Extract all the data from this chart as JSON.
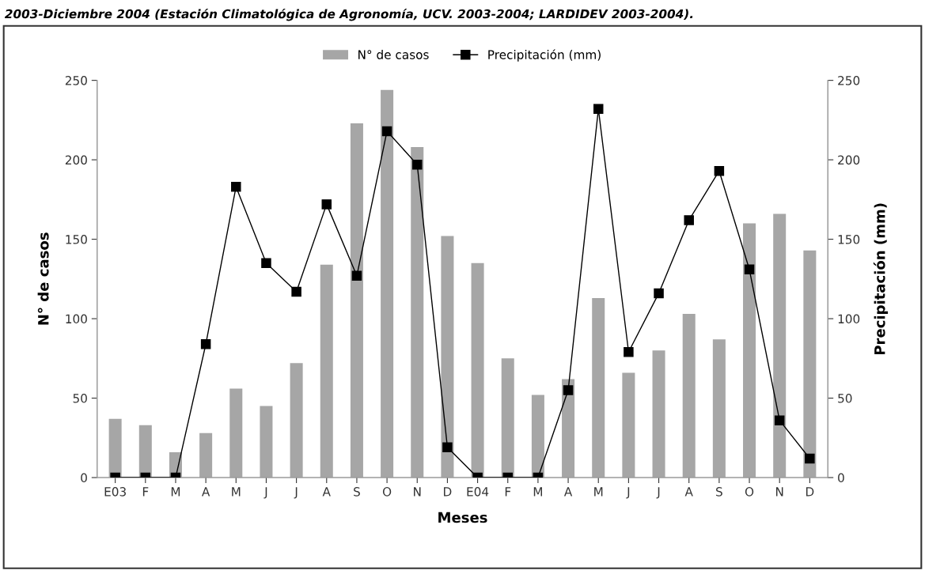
{
  "chart_data": {
    "type": "bar",
    "annotations": [
      "2003-Diciembre 2004 (Estación Climatológica de Agronomía, UCV. 2003-2004; LARDIDEV 2003-2004)."
    ],
    "xlabel": "Meses",
    "ylabel": "N° de casos",
    "y2label": "Precipitación (mm)",
    "categories": [
      "E03",
      "F",
      "M",
      "A",
      "M",
      "J",
      "J",
      "A",
      "S",
      "O",
      "N",
      "D",
      "E04",
      "F",
      "M",
      "A",
      "M",
      "J",
      "J",
      "A",
      "S",
      "O",
      "N",
      "D"
    ],
    "series": [
      {
        "name": "N° de casos",
        "color": "#a6a6a6",
        "values": [
          37,
          33,
          16,
          28,
          56,
          45,
          72,
          134,
          223,
          244,
          208,
          152,
          135,
          75,
          52,
          62,
          113,
          66,
          80,
          103,
          87,
          160,
          166,
          143
        ]
      },
      {
        "name": "Precipitación (mm)",
        "type": "line",
        "axis": "y2",
        "color": "#000000",
        "marker": "square",
        "values": [
          0,
          0,
          0,
          84,
          183,
          135,
          117,
          172,
          127,
          218,
          197,
          19,
          0,
          0,
          0,
          55,
          232,
          79,
          116,
          162,
          193,
          131,
          36,
          12
        ]
      }
    ],
    "ylim": [
      0,
      250
    ],
    "yticks": [
      0,
      50,
      100,
      150,
      200,
      250
    ],
    "y2lim": [
      0,
      250
    ],
    "y2ticks": [
      0,
      50,
      100,
      150,
      200,
      250
    ],
    "legend": "top",
    "grid": false
  }
}
